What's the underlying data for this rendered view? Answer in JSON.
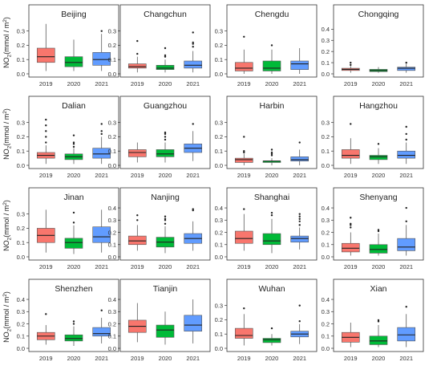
{
  "chart_data": {
    "type": "boxplot",
    "layout": {
      "rows": 4,
      "cols": 4
    },
    "shared_x": [
      "2019",
      "2020",
      "2021"
    ],
    "ylabel_main": "NO",
    "ylabel_sub": "2",
    "ylabel_unit": "(mmol / m",
    "ylabel_sup": "2",
    "ylabel_close": ")",
    "series_colors": [
      "#f8766d",
      "#00ba38",
      "#619cff"
    ],
    "panels": [
      {
        "title": "Beijing",
        "ylim": [
          0,
          0.36
        ],
        "yticks": [
          0.0,
          0.1,
          0.2,
          0.3
        ],
        "boxes": [
          {
            "low": 0.02,
            "q1": 0.08,
            "med": 0.12,
            "q3": 0.18,
            "high": 0.35,
            "outliers": []
          },
          {
            "low": 0.02,
            "q1": 0.05,
            "med": 0.08,
            "q3": 0.12,
            "high": 0.24,
            "outliers": []
          },
          {
            "low": 0.02,
            "q1": 0.06,
            "med": 0.1,
            "q3": 0.15,
            "high": 0.28,
            "outliers": [
              0.3
            ]
          }
        ]
      },
      {
        "title": "Changchun",
        "ylim": [
          0,
          0.36
        ],
        "yticks": [
          0.0,
          0.1,
          0.2,
          0.3
        ],
        "boxes": [
          {
            "low": 0.01,
            "q1": 0.04,
            "med": 0.05,
            "q3": 0.07,
            "high": 0.12,
            "outliers": [
              0.14,
              0.23
            ]
          },
          {
            "low": 0.01,
            "q1": 0.03,
            "med": 0.04,
            "q3": 0.06,
            "high": 0.1,
            "outliers": [
              0.12,
              0.13,
              0.18
            ]
          },
          {
            "low": 0.01,
            "q1": 0.04,
            "med": 0.06,
            "q3": 0.09,
            "high": 0.16,
            "outliers": [
              0.19,
              0.21,
              0.22,
              0.29
            ]
          }
        ]
      },
      {
        "title": "Chengdu",
        "ylim": [
          0,
          0.36
        ],
        "yticks": [
          0.0,
          0.1,
          0.2,
          0.3
        ],
        "boxes": [
          {
            "low": 0.0,
            "q1": 0.02,
            "med": 0.04,
            "q3": 0.08,
            "high": 0.17,
            "outliers": [
              0.26
            ]
          },
          {
            "low": 0.0,
            "q1": 0.02,
            "med": 0.04,
            "q3": 0.09,
            "high": 0.17,
            "outliers": [
              0.2
            ]
          },
          {
            "low": 0.0,
            "q1": 0.03,
            "med": 0.07,
            "q3": 0.09,
            "high": 0.18,
            "outliers": []
          }
        ]
      },
      {
        "title": "Chongqing",
        "ylim": [
          0,
          0.46
        ],
        "yticks": [
          0.0,
          0.1,
          0.2,
          0.3,
          0.4
        ],
        "boxes": [
          {
            "low": 0.01,
            "q1": 0.03,
            "med": 0.04,
            "q3": 0.05,
            "high": 0.07,
            "outliers": [
              0.08,
              0.1
            ]
          },
          {
            "low": 0.01,
            "q1": 0.02,
            "med": 0.03,
            "q3": 0.04,
            "high": 0.06,
            "outliers": []
          },
          {
            "low": 0.01,
            "q1": 0.03,
            "med": 0.05,
            "q3": 0.06,
            "high": 0.09,
            "outliers": [
              0.1
            ]
          }
        ]
      },
      {
        "title": "Dalian",
        "ylim": [
          0,
          0.36
        ],
        "yticks": [
          0.0,
          0.1,
          0.2,
          0.3
        ],
        "boxes": [
          {
            "low": 0.01,
            "q1": 0.05,
            "med": 0.07,
            "q3": 0.09,
            "high": 0.14,
            "outliers": [
              0.16,
              0.2,
              0.24,
              0.28,
              0.32
            ]
          },
          {
            "low": 0.01,
            "q1": 0.04,
            "med": 0.06,
            "q3": 0.08,
            "high": 0.12,
            "outliers": [
              0.13,
              0.15,
              0.16,
              0.21
            ]
          },
          {
            "low": 0.01,
            "q1": 0.05,
            "med": 0.08,
            "q3": 0.12,
            "high": 0.2,
            "outliers": [
              0.22,
              0.24,
              0.29
            ]
          }
        ]
      },
      {
        "title": "Guangzhou",
        "ylim": [
          0,
          0.36
        ],
        "yticks": [
          0.0,
          0.1,
          0.2,
          0.3
        ],
        "boxes": [
          {
            "low": 0.02,
            "q1": 0.06,
            "med": 0.09,
            "q3": 0.11,
            "high": 0.16,
            "outliers": []
          },
          {
            "low": 0.02,
            "q1": 0.06,
            "med": 0.08,
            "q3": 0.11,
            "high": 0.16,
            "outliers": [
              0.18,
              0.2,
              0.22,
              0.23
            ]
          },
          {
            "low": 0.03,
            "q1": 0.09,
            "med": 0.12,
            "q3": 0.15,
            "high": 0.24,
            "outliers": [
              0.29
            ]
          }
        ]
      },
      {
        "title": "Harbin",
        "ylim": [
          0,
          0.36
        ],
        "yticks": [
          0.0,
          0.1,
          0.2,
          0.3
        ],
        "boxes": [
          {
            "low": 0.0,
            "q1": 0.02,
            "med": 0.04,
            "q3": 0.05,
            "high": 0.08,
            "outliers": [
              0.09,
              0.1,
              0.2
            ]
          },
          {
            "low": 0.0,
            "q1": 0.02,
            "med": 0.03,
            "q3": 0.03,
            "high": 0.05,
            "outliers": [
              0.07,
              0.08,
              0.09,
              0.11
            ]
          },
          {
            "low": 0.0,
            "q1": 0.03,
            "med": 0.04,
            "q3": 0.06,
            "high": 0.11,
            "outliers": [
              0.16
            ]
          }
        ]
      },
      {
        "title": "Hangzhou",
        "ylim": [
          0,
          0.36
        ],
        "yticks": [
          0.0,
          0.1,
          0.2,
          0.3
        ],
        "boxes": [
          {
            "low": 0.01,
            "q1": 0.05,
            "med": 0.07,
            "q3": 0.11,
            "high": 0.19,
            "outliers": [
              0.29
            ]
          },
          {
            "low": 0.01,
            "q1": 0.04,
            "med": 0.06,
            "q3": 0.07,
            "high": 0.12,
            "outliers": [
              0.15
            ]
          },
          {
            "low": 0.01,
            "q1": 0.05,
            "med": 0.07,
            "q3": 0.1,
            "high": 0.16,
            "outliers": [
              0.18,
              0.22,
              0.27
            ]
          }
        ]
      },
      {
        "title": "Jinan",
        "ylim": [
          0,
          0.36
        ],
        "yticks": [
          0.0,
          0.1,
          0.2,
          0.3
        ],
        "boxes": [
          {
            "low": 0.03,
            "q1": 0.1,
            "med": 0.15,
            "q3": 0.2,
            "high": 0.33,
            "outliers": []
          },
          {
            "low": 0.02,
            "q1": 0.06,
            "med": 0.1,
            "q3": 0.13,
            "high": 0.22,
            "outliers": [
              0.24,
              0.31
            ]
          },
          {
            "low": 0.03,
            "q1": 0.1,
            "med": 0.14,
            "q3": 0.21,
            "high": 0.33,
            "outliers": []
          }
        ]
      },
      {
        "title": "Nanjing",
        "ylim": [
          0,
          0.42
        ],
        "yticks": [
          0.0,
          0.1,
          0.2,
          0.3,
          0.4
        ],
        "boxes": [
          {
            "low": 0.05,
            "q1": 0.1,
            "med": 0.13,
            "q3": 0.17,
            "high": 0.26,
            "outliers": [
              0.3,
              0.34
            ]
          },
          {
            "low": 0.03,
            "q1": 0.08,
            "med": 0.12,
            "q3": 0.16,
            "high": 0.25,
            "outliers": [
              0.27,
              0.3,
              0.31,
              0.33
            ]
          },
          {
            "low": 0.05,
            "q1": 0.11,
            "med": 0.15,
            "q3": 0.19,
            "high": 0.29,
            "outliers": [
              0.38,
              0.39
            ]
          }
        ]
      },
      {
        "title": "Shanghai",
        "ylim": [
          0,
          0.42
        ],
        "yticks": [
          0.0,
          0.1,
          0.2,
          0.3,
          0.4
        ],
        "boxes": [
          {
            "low": 0.05,
            "q1": 0.11,
            "med": 0.15,
            "q3": 0.21,
            "high": 0.35,
            "outliers": [
              0.39
            ]
          },
          {
            "low": 0.03,
            "q1": 0.1,
            "med": 0.13,
            "q3": 0.19,
            "high": 0.31,
            "outliers": [
              0.34,
              0.36
            ]
          },
          {
            "low": 0.06,
            "q1": 0.12,
            "med": 0.15,
            "q3": 0.17,
            "high": 0.24,
            "outliers": [
              0.26,
              0.29,
              0.31,
              0.33,
              0.35
            ]
          }
        ]
      },
      {
        "title": "Shenyang",
        "ylim": [
          0,
          0.42
        ],
        "yticks": [
          0.0,
          0.1,
          0.2,
          0.3,
          0.4
        ],
        "boxes": [
          {
            "low": 0.01,
            "q1": 0.04,
            "med": 0.07,
            "q3": 0.11,
            "high": 0.2,
            "outliers": [
              0.24,
              0.26,
              0.27,
              0.32
            ]
          },
          {
            "low": 0.01,
            "q1": 0.03,
            "med": 0.06,
            "q3": 0.1,
            "high": 0.19,
            "outliers": [
              0.21,
              0.22
            ]
          },
          {
            "low": 0.01,
            "q1": 0.05,
            "med": 0.08,
            "q3": 0.15,
            "high": 0.26,
            "outliers": [
              0.29,
              0.4
            ]
          }
        ]
      },
      {
        "title": "Shenzhen",
        "ylim": [
          0,
          0.42
        ],
        "yticks": [
          0.0,
          0.1,
          0.2,
          0.3,
          0.4
        ],
        "boxes": [
          {
            "low": 0.03,
            "q1": 0.07,
            "med": 0.1,
            "q3": 0.13,
            "high": 0.19,
            "outliers": [
              0.28
            ]
          },
          {
            "low": 0.02,
            "q1": 0.06,
            "med": 0.08,
            "q3": 0.11,
            "high": 0.18,
            "outliers": [
              0.2,
              0.22
            ]
          },
          {
            "low": 0.04,
            "q1": 0.1,
            "med": 0.12,
            "q3": 0.17,
            "high": 0.25,
            "outliers": [
              0.31
            ]
          }
        ]
      },
      {
        "title": "Tianjin",
        "ylim": [
          0,
          0.42
        ],
        "yticks": [
          0.0,
          0.1,
          0.2,
          0.3,
          0.4
        ],
        "boxes": [
          {
            "low": 0.05,
            "q1": 0.13,
            "med": 0.18,
            "q3": 0.23,
            "high": 0.37,
            "outliers": []
          },
          {
            "low": 0.03,
            "q1": 0.09,
            "med": 0.15,
            "q3": 0.19,
            "high": 0.3,
            "outliers": []
          },
          {
            "low": 0.04,
            "q1": 0.14,
            "med": 0.19,
            "q3": 0.27,
            "high": 0.4,
            "outliers": []
          }
        ]
      },
      {
        "title": "Wuhan",
        "ylim": [
          0,
          0.36
        ],
        "yticks": [
          0.0,
          0.1,
          0.2,
          0.3
        ],
        "boxes": [
          {
            "low": 0.02,
            "q1": 0.07,
            "med": 0.09,
            "q3": 0.14,
            "high": 0.24,
            "outliers": [
              0.28
            ]
          },
          {
            "low": 0.02,
            "q1": 0.04,
            "med": 0.06,
            "q3": 0.07,
            "high": 0.1,
            "outliers": [
              0.14
            ]
          },
          {
            "low": 0.03,
            "q1": 0.08,
            "med": 0.1,
            "q3": 0.12,
            "high": 0.17,
            "outliers": [
              0.19,
              0.3
            ]
          }
        ]
      },
      {
        "title": "Xian",
        "ylim": [
          0,
          0.42
        ],
        "yticks": [
          0.0,
          0.1,
          0.2,
          0.3,
          0.4
        ],
        "boxes": [
          {
            "low": 0.01,
            "q1": 0.05,
            "med": 0.09,
            "q3": 0.13,
            "high": 0.21,
            "outliers": []
          },
          {
            "low": 0.01,
            "q1": 0.03,
            "med": 0.06,
            "q3": 0.1,
            "high": 0.19,
            "outliers": [
              0.22,
              0.23
            ]
          },
          {
            "low": 0.01,
            "q1": 0.06,
            "med": 0.11,
            "q3": 0.17,
            "high": 0.28,
            "outliers": [
              0.34
            ]
          }
        ]
      }
    ]
  }
}
